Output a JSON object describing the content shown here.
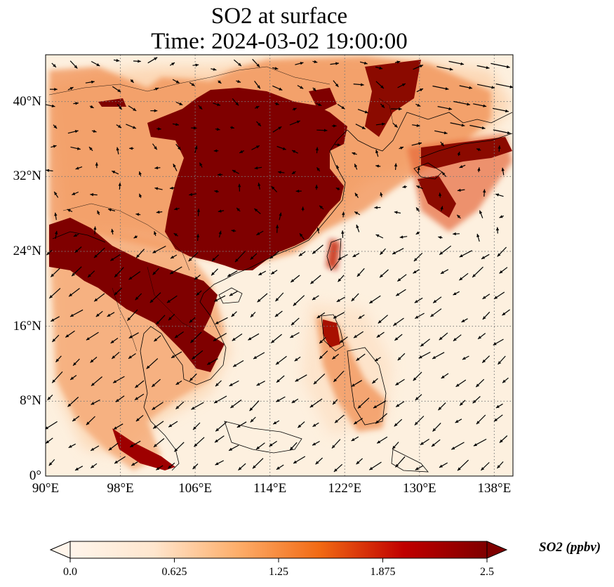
{
  "title": {
    "line1": "SO2 at surface",
    "line2": "Time: 2024-03-02 19:00:00"
  },
  "map": {
    "extent": {
      "lon": [
        90,
        140
      ],
      "lat": [
        0,
        45
      ]
    },
    "grid": "dotted",
    "lon_ticks": [
      {
        "value": 90,
        "label": "90°E"
      },
      {
        "value": 98,
        "label": "98°E"
      },
      {
        "value": 106,
        "label": "106°E"
      },
      {
        "value": 114,
        "label": "114°E"
      },
      {
        "value": 122,
        "label": "122°E"
      },
      {
        "value": 130,
        "label": "130°E"
      },
      {
        "value": 138,
        "label": "138°E"
      }
    ],
    "lat_ticks": [
      {
        "value": 0,
        "label": "0°"
      },
      {
        "value": 8,
        "label": "8°N"
      },
      {
        "value": 16,
        "label": "16°N"
      },
      {
        "value": 24,
        "label": "24°N"
      },
      {
        "value": 32,
        "label": "32°N"
      },
      {
        "value": 40,
        "label": "40°N"
      }
    ],
    "colormap": [
      "#fff5eb",
      "#fdd0a2",
      "#fd8d3c",
      "#d94801",
      "#a30000",
      "#7f0000"
    ],
    "so2_high_color": "#7f0000",
    "wind_arrows_note": "black quiver arrows"
  },
  "colorbar": {
    "label": "SO2 (ppbv)",
    "min": 0.0,
    "max": 2.5,
    "extend": "both",
    "ticks": [
      {
        "value": 0.0,
        "label": "0.0"
      },
      {
        "value": 0.625,
        "label": "0.625"
      },
      {
        "value": 1.25,
        "label": "1.25"
      },
      {
        "value": 1.875,
        "label": "1.875"
      },
      {
        "value": 2.5,
        "label": "2.5"
      }
    ]
  }
}
